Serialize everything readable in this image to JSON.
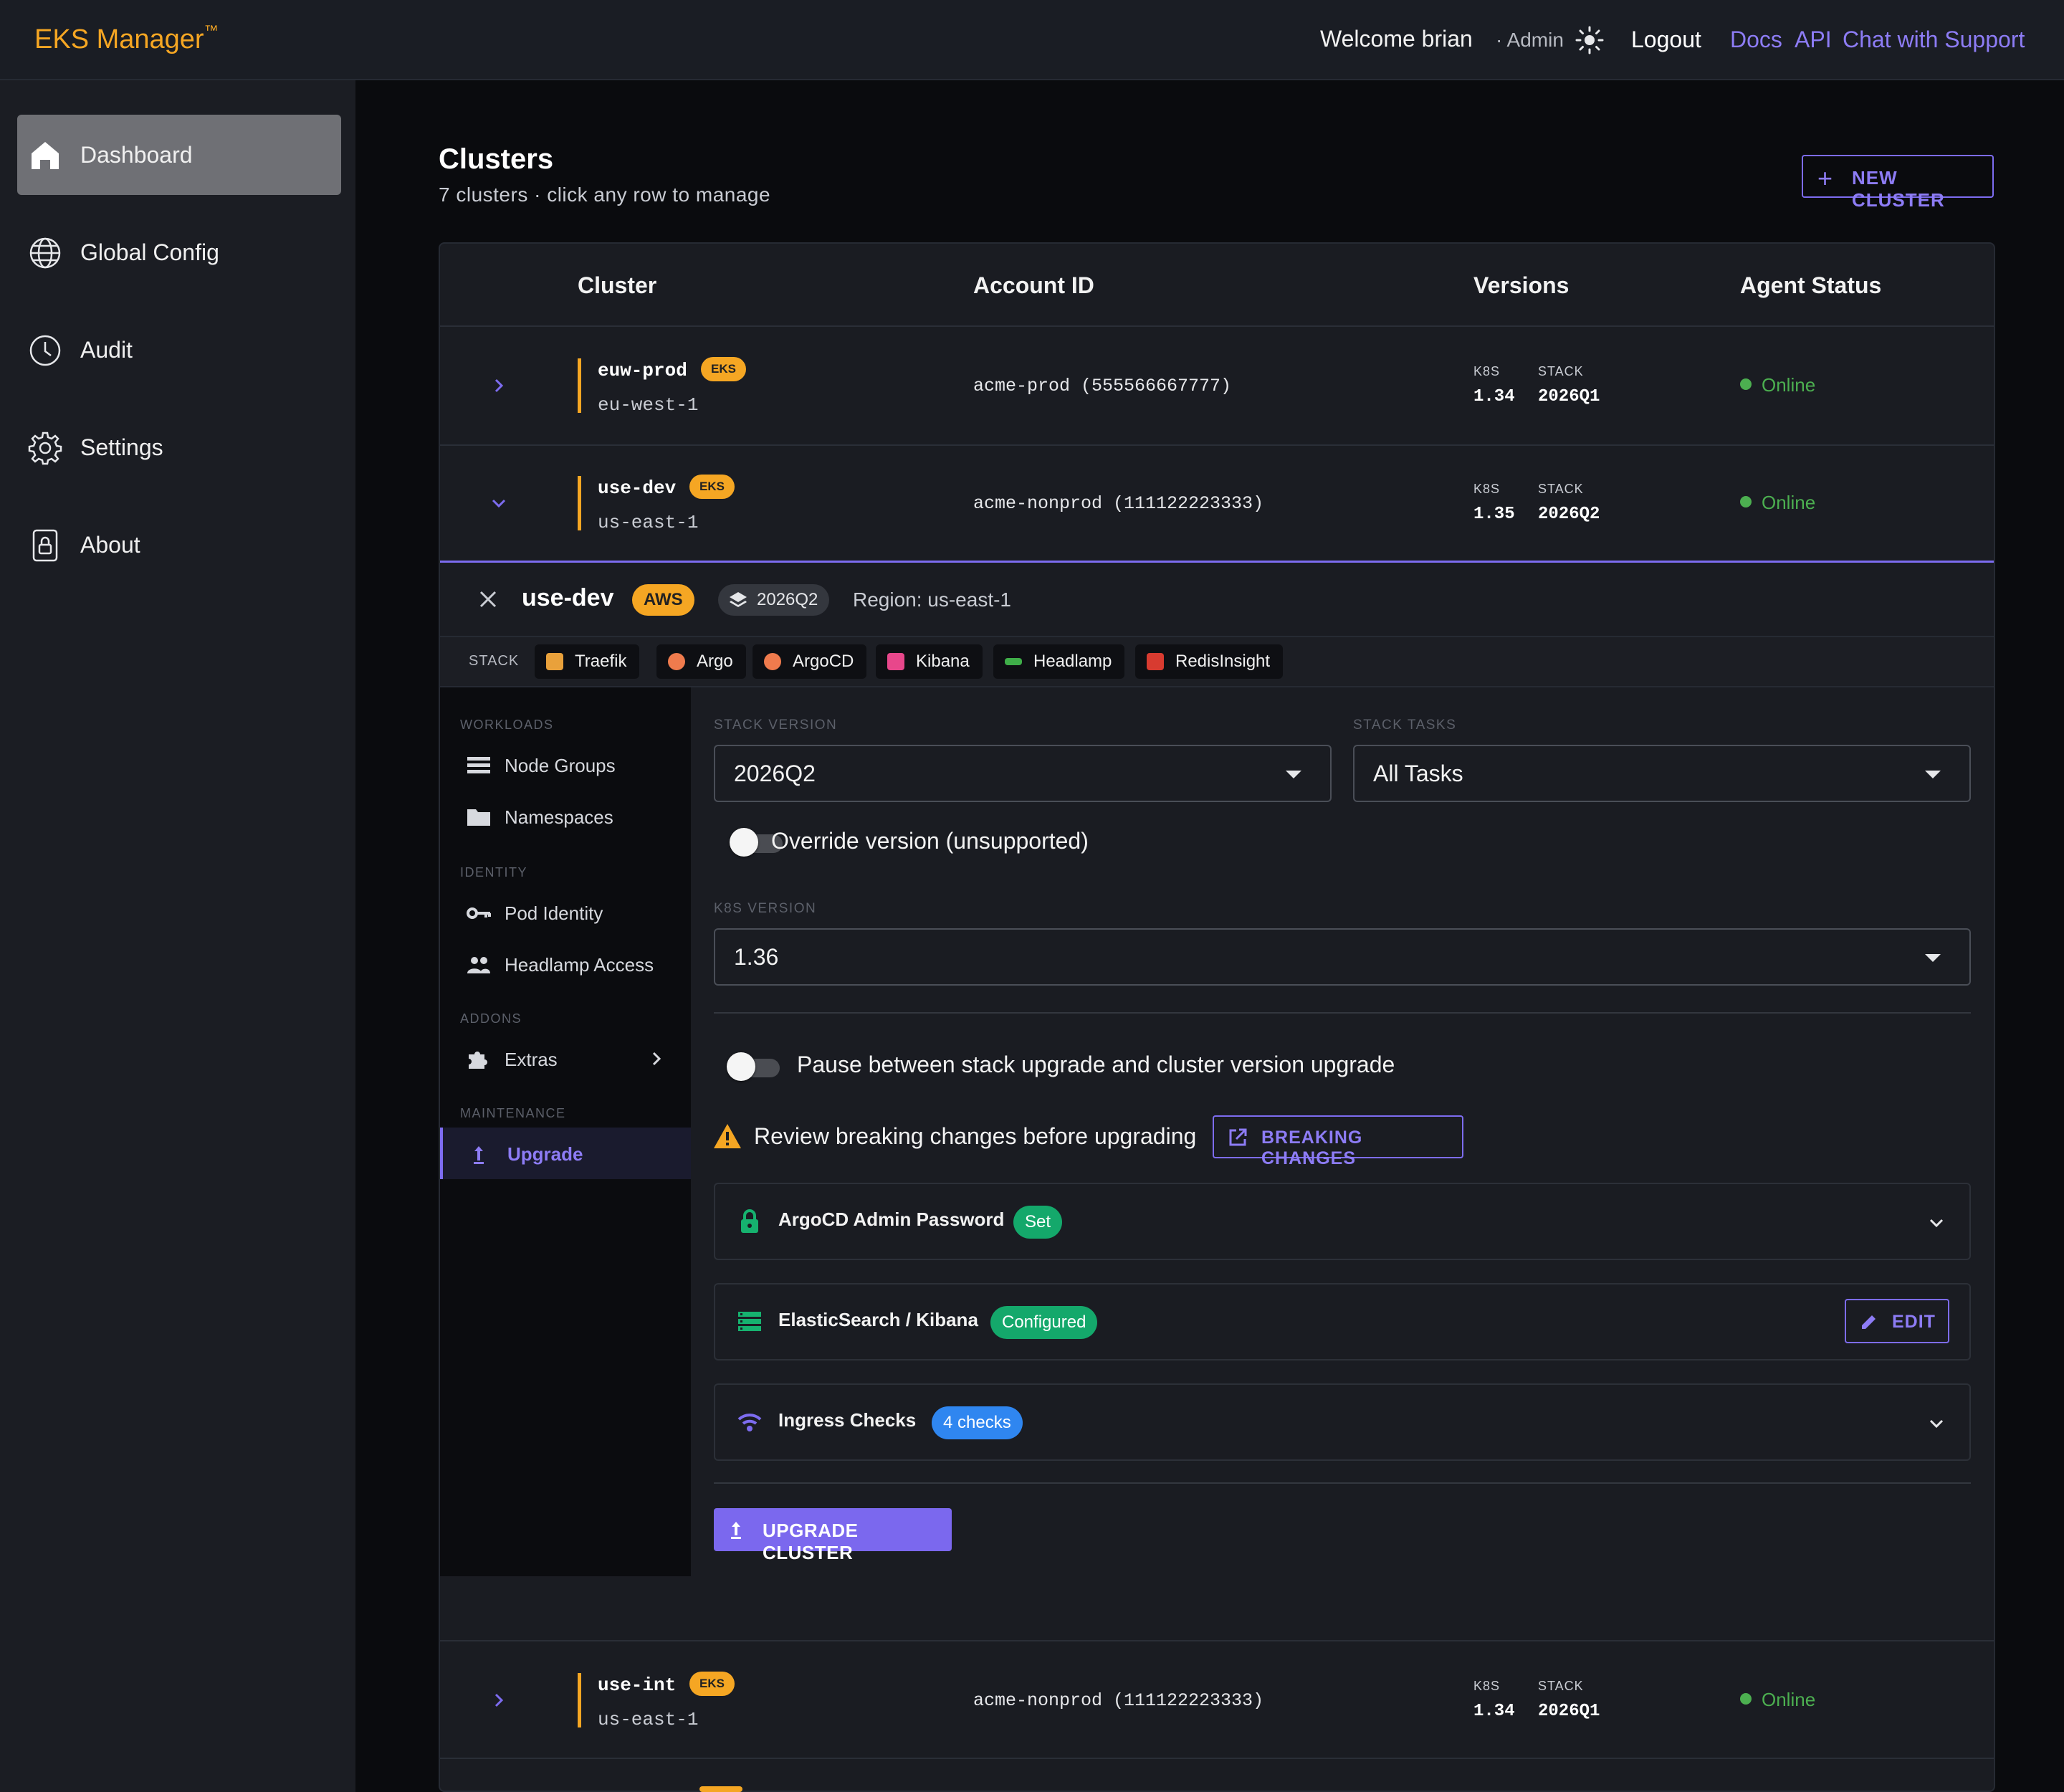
{
  "header": {
    "brand": "EKS Manager",
    "brand_mark": "™",
    "welcome": "Welcome brian",
    "role": "· Admin",
    "logout": "Logout",
    "links": [
      "Docs",
      "API",
      "Chat with Support"
    ]
  },
  "sidebar": {
    "items": [
      {
        "label": "Dashboard",
        "icon": "home-icon",
        "active": true
      },
      {
        "label": "Global Config",
        "icon": "globe-icon"
      },
      {
        "label": "Audit",
        "icon": "clock-icon"
      },
      {
        "label": "Settings",
        "icon": "gear-icon"
      },
      {
        "label": "About",
        "icon": "lock-icon"
      }
    ]
  },
  "page": {
    "title": "Clusters",
    "subtitle": "7 clusters · click any row to manage",
    "new_cluster": "NEW CLUSTER"
  },
  "table": {
    "columns": [
      "Cluster",
      "Account ID",
      "Versions",
      "Agent Status"
    ],
    "version_labels": {
      "k8s": "K8S",
      "stack": "STACK"
    },
    "rows": [
      {
        "name": "euw-prod",
        "badge": "EKS",
        "region": "eu-west-1",
        "account": "acme-prod (555566667777)",
        "k8s": "1.34",
        "stack": "2026Q1",
        "status": "Online"
      },
      {
        "name": "use-dev",
        "badge": "EKS",
        "region": "us-east-1",
        "account": "acme-nonprod (111122223333)",
        "k8s": "1.35",
        "stack": "2026Q2",
        "status": "Online"
      },
      {
        "name": "use-int",
        "badge": "EKS",
        "region": "us-east-1",
        "account": "acme-nonprod (111122223333)",
        "k8s": "1.34",
        "stack": "2026Q1",
        "status": "Online"
      }
    ]
  },
  "detail": {
    "name": "use-dev",
    "provider": "AWS",
    "stack_version": "2026Q2",
    "region": "Region: us-east-1",
    "stack_label": "STACK",
    "stack_apps": [
      {
        "label": "Traefik",
        "color": "#e9a13b"
      },
      {
        "label": "Argo",
        "color": "#ef7b4d"
      },
      {
        "label": "ArgoCD",
        "color": "#ef7b4d"
      },
      {
        "label": "Kibana",
        "color": "#e8478b"
      },
      {
        "label": "Headlamp",
        "color": "#3fae49"
      },
      {
        "label": "RedisInsight",
        "color": "#d83b30"
      }
    ],
    "subnav": {
      "sections": [
        {
          "title": "WORKLOADS",
          "items": [
            {
              "label": "Node Groups",
              "icon": "list-icon"
            },
            {
              "label": "Namespaces",
              "icon": "folder-icon"
            }
          ]
        },
        {
          "title": "IDENTITY",
          "items": [
            {
              "label": "Pod Identity",
              "icon": "key-icon"
            },
            {
              "label": "Headlamp Access",
              "icon": "people-icon"
            }
          ]
        },
        {
          "title": "ADDONS",
          "items": [
            {
              "label": "Extras",
              "icon": "puzzle-icon"
            }
          ]
        },
        {
          "title": "MAINTENANCE",
          "items": [
            {
              "label": "Upgrade",
              "icon": "upload-icon",
              "active": true
            }
          ]
        }
      ]
    },
    "form": {
      "stack_version_label": "STACK VERSION",
      "stack_version_value": "2026Q2",
      "stack_tasks_label": "STACK TASKS",
      "stack_tasks_value": "All Tasks",
      "override_label": "Override version (unsupported)",
      "override_on": false,
      "k8s_version_label": "K8S VERSION",
      "k8s_version_value": "1.36",
      "pause_label": "Pause between stack upgrade and cluster version upgrade",
      "pause_on": false,
      "warning_text": "Review breaking changes before upgrading",
      "breaking_changes_button": "BREAKING CHANGES",
      "cards": [
        {
          "title": "ArgoCD Admin Password",
          "pill": "Set",
          "pill_color": "#14a86b",
          "icon": "lock-icon"
        },
        {
          "title": "ElasticSearch / Kibana",
          "pill": "Configured",
          "pill_color": "#14a86b",
          "icon": "server-icon",
          "action": "EDIT"
        },
        {
          "title": "Ingress Checks",
          "pill": "4 checks",
          "pill_color": "#2f86f0",
          "icon": "wifi-icon"
        }
      ],
      "upgrade_button": "UPGRADE CLUSTER"
    }
  },
  "colors": {
    "accent": "#7d6cf0",
    "brand": "#f5a623",
    "online": "#4caf50"
  }
}
